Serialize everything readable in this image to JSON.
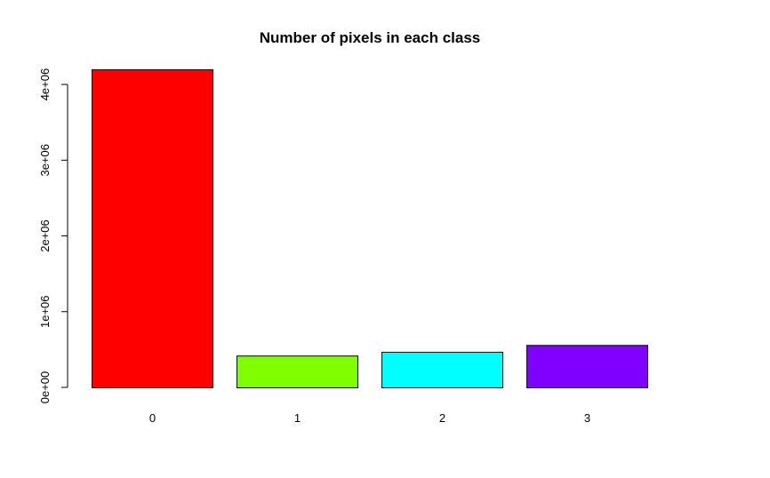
{
  "chart_data": {
    "type": "bar",
    "title": "Number of pixels in each class",
    "xlabel": "",
    "ylabel": "",
    "categories": [
      "0",
      "1",
      "2",
      "3"
    ],
    "values": [
      4200000,
      420000,
      470000,
      560000
    ],
    "colors": [
      "#ff0000",
      "#80ff00",
      "#00ffff",
      "#8000ff"
    ],
    "ylim": [
      0,
      4200000
    ],
    "yticks": [
      0,
      1000000,
      2000000,
      3000000,
      4000000
    ],
    "ytick_labels": [
      "0e+00",
      "1e+06",
      "2e+06",
      "3e+06",
      "4e+06"
    ],
    "grid": false,
    "legend": "none"
  }
}
